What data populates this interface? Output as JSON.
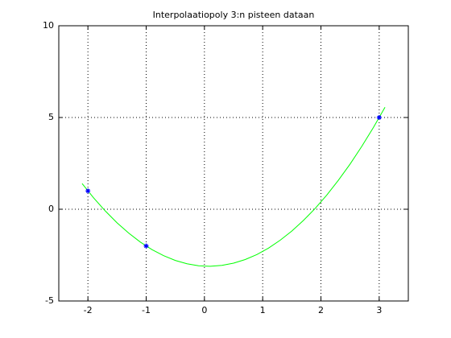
{
  "chart_data": {
    "type": "line",
    "title": "Interpolaatiopoly 3:n pisteen dataan",
    "xlim": [
      -2.5,
      3.5
    ],
    "ylim": [
      -5,
      10
    ],
    "xticks": [
      -2,
      -1,
      0,
      1,
      2,
      3
    ],
    "yticks": [
      -5,
      0,
      5,
      10
    ],
    "grid": true,
    "series": [
      {
        "style": "line",
        "color": "#00ff00",
        "x": [
          -2.1,
          -1.9,
          -1.7,
          -1.5,
          -1.3,
          -1.1,
          -0.9,
          -0.7,
          -0.5,
          -0.3,
          -0.1,
          0.1,
          0.3,
          0.5,
          0.7,
          0.9,
          1.1,
          1.3,
          1.5,
          1.7,
          1.9,
          2.1,
          2.3,
          2.5,
          2.7,
          2.9,
          3.1
        ],
        "values": [
          1.4,
          0.61,
          -0.1,
          -0.74,
          -1.3,
          -1.79,
          -2.2,
          -2.53,
          -2.79,
          -2.97,
          -3.08,
          -3.11,
          -3.06,
          -2.94,
          -2.74,
          -2.47,
          -2.12,
          -1.69,
          -1.19,
          -0.61,
          0.04,
          0.77,
          1.58,
          2.46,
          3.42,
          4.45,
          5.56
        ]
      },
      {
        "style": "asterisk",
        "color": "#0000ff",
        "x": [
          -2,
          -1,
          3
        ],
        "values": [
          1,
          -2,
          5
        ]
      }
    ]
  }
}
